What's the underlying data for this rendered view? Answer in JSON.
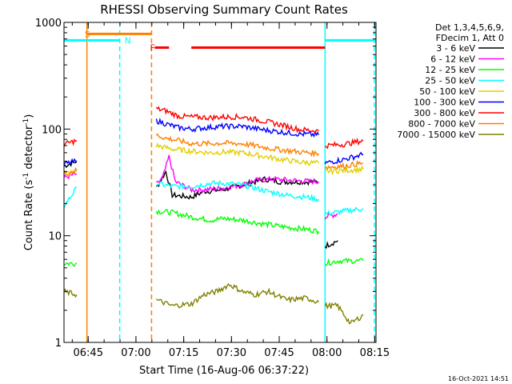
{
  "chart_data": {
    "type": "line",
    "title": "RHESSI Observing Summary Count Rates",
    "xlabel": "Start Time (16-Aug-06 06:37:22)",
    "ylabel_parts": [
      "Count Rate (s",
      "-1",
      " detector",
      "-1",
      ")"
    ],
    "y_scale": "log",
    "ylim": [
      1,
      1000
    ],
    "y_ticks": [
      {
        "value": 1,
        "label": "1"
      },
      {
        "value": 10,
        "label": "10"
      },
      {
        "value": 100,
        "label": "100"
      },
      {
        "value": 1000,
        "label": "1000"
      }
    ],
    "xlim_minutes": [
      0,
      98
    ],
    "x_ticks": [
      {
        "minute": 7.6,
        "label": "06:45"
      },
      {
        "minute": 22.6,
        "label": "07:00"
      },
      {
        "minute": 37.6,
        "label": "07:15"
      },
      {
        "minute": 52.6,
        "label": "07:30"
      },
      {
        "minute": 67.6,
        "label": "07:45"
      },
      {
        "minute": 82.6,
        "label": "08:00"
      },
      {
        "minute": 97.6,
        "label": "08:15"
      }
    ],
    "legend_header": [
      "Det 1,3,4,5,6,9,",
      "FDecim 1, Att 0"
    ],
    "legend_position": "right",
    "series": [
      {
        "name": "3 - 6 keV",
        "color": "#000000",
        "segments": [
          [
            [
              0,
              45
            ],
            [
              4,
              50
            ]
          ],
          [
            [
              29,
              28
            ],
            [
              32,
              40
            ],
            [
              34,
              24
            ],
            [
              40,
              23
            ],
            [
              44,
              26
            ],
            [
              50,
              27
            ],
            [
              56,
              30
            ],
            [
              60,
              32
            ],
            [
              63,
              34
            ],
            [
              68,
              32
            ],
            [
              76,
              32
            ],
            [
              80,
              32
            ]
          ],
          [
            [
              82,
              8
            ],
            [
              86,
              9
            ]
          ]
        ]
      },
      {
        "name": "6 - 12 keV",
        "color": "#ff00ff",
        "segments": [
          [
            [
              0,
              35
            ],
            [
              4,
              38
            ]
          ],
          [
            [
              29,
              30
            ],
            [
              31,
              35
            ],
            [
              33,
              55
            ],
            [
              35,
              32
            ],
            [
              40,
              27
            ],
            [
              44,
              27
            ],
            [
              50,
              28
            ],
            [
              56,
              30
            ],
            [
              60,
              33
            ],
            [
              66,
              34
            ],
            [
              72,
              33
            ],
            [
              80,
              32
            ]
          ],
          [
            [
              82,
              15
            ],
            [
              86,
              16
            ]
          ]
        ]
      },
      {
        "name": "12 - 25 keV",
        "color": "#00ff00",
        "segments": [
          [
            [
              0,
              5.5
            ],
            [
              4,
              5.5
            ]
          ],
          [
            [
              29,
              17
            ],
            [
              34,
              16.5
            ],
            [
              40,
              15
            ],
            [
              46,
              14
            ],
            [
              50,
              14.5
            ],
            [
              56,
              14
            ],
            [
              62,
              13
            ],
            [
              70,
              12
            ],
            [
              76,
              11.5
            ],
            [
              80,
              11
            ]
          ],
          [
            [
              82,
              5.5
            ],
            [
              86,
              5.8
            ],
            [
              94,
              5.8
            ]
          ]
        ]
      },
      {
        "name": "25 - 50 keV",
        "color": "#00ffff",
        "segments": [
          [
            [
              0,
              19
            ],
            [
              4,
              28
            ]
          ],
          [
            [
              29,
              31
            ],
            [
              34,
              29
            ],
            [
              40,
              29
            ],
            [
              46,
              31
            ],
            [
              50,
              31
            ],
            [
              56,
              30
            ],
            [
              60,
              28
            ],
            [
              64,
              26
            ],
            [
              70,
              24
            ],
            [
              76,
              23
            ],
            [
              80,
              22
            ]
          ],
          [
            [
              82,
              16
            ],
            [
              88,
              17
            ],
            [
              94,
              18
            ]
          ]
        ]
      },
      {
        "name": "50 - 100 keV",
        "color": "#e0d000",
        "segments": [
          [
            [
              0,
              38
            ],
            [
              4,
              40
            ]
          ],
          [
            [
              29,
              70
            ],
            [
              34,
              65
            ],
            [
              40,
              62
            ],
            [
              46,
              60
            ],
            [
              50,
              61
            ],
            [
              56,
              60
            ],
            [
              62,
              56
            ],
            [
              68,
              52
            ],
            [
              74,
              49
            ],
            [
              80,
              48
            ]
          ],
          [
            [
              82,
              40
            ],
            [
              88,
              41
            ],
            [
              94,
              42
            ]
          ]
        ]
      },
      {
        "name": "100 - 300 keV",
        "color": "#0000ff",
        "segments": [
          [
            [
              0,
              47
            ],
            [
              4,
              50
            ]
          ],
          [
            [
              29,
              120
            ],
            [
              32,
              112
            ],
            [
              36,
              103
            ],
            [
              40,
              100
            ],
            [
              46,
              104
            ],
            [
              50,
              106
            ],
            [
              56,
              106
            ],
            [
              62,
              99
            ],
            [
              68,
              94
            ],
            [
              74,
              90
            ],
            [
              80,
              88
            ]
          ],
          [
            [
              82,
              48
            ],
            [
              88,
              52
            ],
            [
              94,
              58
            ]
          ]
        ]
      },
      {
        "name": "300 - 800 keV",
        "color": "#ff0000",
        "segments": [
          [
            [
              0,
              72
            ],
            [
              4,
              78
            ]
          ],
          [
            [
              29,
              155
            ],
            [
              32,
              148
            ],
            [
              36,
              132
            ],
            [
              40,
              130
            ],
            [
              46,
              128
            ],
            [
              50,
              130
            ],
            [
              56,
              130
            ],
            [
              62,
              120
            ],
            [
              68,
              110
            ],
            [
              74,
              99
            ],
            [
              80,
              96
            ]
          ],
          [
            [
              82,
              70
            ],
            [
              88,
              72
            ],
            [
              94,
              78
            ]
          ]
        ]
      },
      {
        "name": "800 - 7000 keV",
        "color": "#ff8000",
        "segments": [
          [
            [
              0,
              38
            ],
            [
              4,
              41
            ]
          ],
          [
            [
              29,
              88
            ],
            [
              32,
              82
            ],
            [
              36,
              78
            ],
            [
              40,
              73
            ],
            [
              46,
              73
            ],
            [
              50,
              74
            ],
            [
              56,
              73
            ],
            [
              62,
              68
            ],
            [
              68,
              64
            ],
            [
              74,
              61
            ],
            [
              80,
              59
            ]
          ],
          [
            [
              82,
              44
            ],
            [
              88,
              45
            ],
            [
              94,
              48
            ]
          ]
        ]
      },
      {
        "name": "7000 - 15000 keV",
        "color": "#808000",
        "segments": [
          [
            [
              0,
              3
            ],
            [
              4,
              2.8
            ]
          ],
          [
            [
              29,
              2.5
            ],
            [
              34,
              2.2
            ],
            [
              40,
              2.3
            ],
            [
              44,
              2.8
            ],
            [
              48,
              3
            ],
            [
              52,
              3.5
            ],
            [
              56,
              3
            ],
            [
              60,
              2.8
            ],
            [
              64,
              3
            ],
            [
              70,
              2.5
            ],
            [
              76,
              2.6
            ],
            [
              80,
              2.4
            ]
          ],
          [
            [
              82,
              2.2
            ],
            [
              86,
              2.2
            ],
            [
              90,
              1.5
            ],
            [
              94,
              1.8
            ]
          ]
        ]
      }
    ],
    "annotations": [
      {
        "label": "S",
        "color": "#ff8000",
        "minute": 6.5,
        "value": 780
      },
      {
        "label": "N",
        "color": "#00ffff",
        "minute": 19,
        "value": 680
      },
      {
        "label": "F",
        "color": "#ff0000",
        "minute": 27,
        "value": 580
      }
    ],
    "state_bars": [
      {
        "color": "#00ffff",
        "from": 0,
        "to": 17.5,
        "value": 680
      },
      {
        "color": "#00ffff",
        "from": 82,
        "to": 98,
        "value": 680
      },
      {
        "color": "#ff8000",
        "from": 7.2,
        "to": 27.5,
        "value": 780
      },
      {
        "color": "#ff0000",
        "from": 28.5,
        "to": 33,
        "value": 580
      },
      {
        "color": "#ff0000",
        "from": 40,
        "to": 82,
        "value": 580
      }
    ],
    "vertical_lines": [
      {
        "color": "#ff8000",
        "minute": 7.2,
        "style": "solid"
      },
      {
        "color": "#00ffff",
        "minute": 17.5,
        "style": "dashed"
      },
      {
        "color": "#ff8000",
        "minute": 27.5,
        "style": "dashed"
      },
      {
        "color": "#00ffff",
        "minute": 82,
        "style": "solid"
      },
      {
        "color": "#00ffff",
        "minute": 97.5,
        "style": "dashed"
      }
    ],
    "timestamp": "16-Oct-2021 14:51"
  }
}
